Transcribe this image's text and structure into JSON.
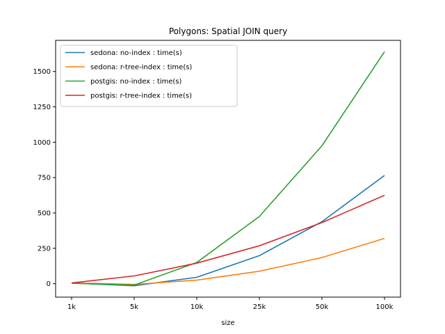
{
  "chart_data": {
    "type": "line",
    "title": "Polygons: Spatial JOIN query",
    "xlabel": "size",
    "ylabel": "",
    "categories": [
      "1k",
      "5k",
      "10k",
      "25k",
      "50k",
      "100k"
    ],
    "ylim": [
      -95,
      1720
    ],
    "yticks": [
      0,
      250,
      500,
      750,
      1000,
      1250,
      1500
    ],
    "grid": false,
    "legend_position": "top-left",
    "series": [
      {
        "name": "sedona: no-index : time(s)",
        "color": "#1f77b4",
        "values": [
          5,
          -15,
          45,
          198,
          438,
          765
        ]
      },
      {
        "name": "sedona: r-tree-index : time(s)",
        "color": "#ff7f0e",
        "values": [
          5,
          -5,
          25,
          88,
          185,
          320
        ]
      },
      {
        "name": "postgis: no-index : time(s)",
        "color": "#2ca02c",
        "values": [
          3,
          -10,
          150,
          475,
          975,
          1640
        ]
      },
      {
        "name": "postgis: r-tree-index : time(s)",
        "color": "#d62728",
        "values": [
          5,
          55,
          145,
          268,
          432,
          625
        ]
      }
    ]
  }
}
